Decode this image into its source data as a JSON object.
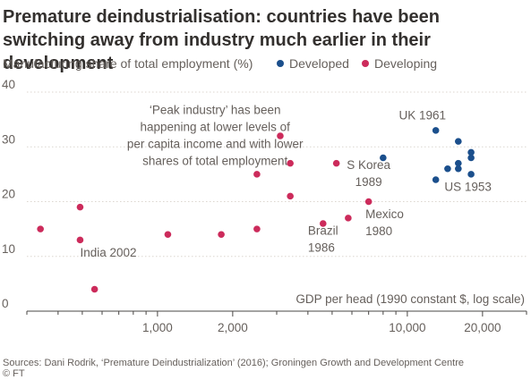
{
  "title": "Premature deindustrialisation: countries have been switching away from industry much earlier in their development",
  "source": "Sources: Dani Rodrik, ‘Premature Deindustrialization’ (2016); Groningen Growth and Development Centre",
  "credit": "© FT",
  "colors": {
    "developed": "#1b4f8c",
    "developing": "#cc2b5b",
    "grid": "#dcd6cf",
    "text": "#66605c"
  },
  "chart_data": {
    "type": "scatter",
    "ylabel": "Manufacturing share of total employment (%)",
    "xlabel": "GDP per head (1990 constant $, log scale)",
    "x_scale": "log",
    "xlim": [
      300,
      30000
    ],
    "ylim": [
      0,
      40
    ],
    "xticks": [
      1000,
      2000,
      10000,
      20000
    ],
    "xtick_labels": [
      "1,000",
      "2,000",
      "10,000",
      "20,000"
    ],
    "yticks": [
      0,
      10,
      20,
      30,
      40
    ],
    "ytick_labels": [
      "0",
      "10",
      "20",
      "30",
      "40"
    ],
    "grid": "horizontal dotted",
    "legend_position": "top-right",
    "series": [
      {
        "name": "Developed",
        "color": "#1b4f8c",
        "points": [
          {
            "x": 8000,
            "y": 28
          },
          {
            "x": 13000,
            "y": 33
          },
          {
            "x": 16000,
            "y": 31
          },
          {
            "x": 18000,
            "y": 29
          },
          {
            "x": 18000,
            "y": 28
          },
          {
            "x": 16000,
            "y": 27
          },
          {
            "x": 14500,
            "y": 26
          },
          {
            "x": 16000,
            "y": 26
          },
          {
            "x": 13000,
            "y": 24
          },
          {
            "x": 18000,
            "y": 25
          }
        ]
      },
      {
        "name": "Developing",
        "color": "#cc2b5b",
        "points": [
          {
            "x": 340,
            "y": 15
          },
          {
            "x": 490,
            "y": 19
          },
          {
            "x": 490,
            "y": 13
          },
          {
            "x": 560,
            "y": 4
          },
          {
            "x": 1100,
            "y": 14
          },
          {
            "x": 1800,
            "y": 14
          },
          {
            "x": 2500,
            "y": 25
          },
          {
            "x": 2500,
            "y": 15
          },
          {
            "x": 3100,
            "y": 32
          },
          {
            "x": 3400,
            "y": 27
          },
          {
            "x": 3400,
            "y": 21
          },
          {
            "x": 4600,
            "y": 16
          },
          {
            "x": 5200,
            "y": 27
          },
          {
            "x": 5800,
            "y": 17
          },
          {
            "x": 7000,
            "y": 20
          }
        ]
      }
    ],
    "annotations": [
      {
        "lines": [
          "‘Peak industry’ has been",
          "happening at lower levels of",
          "per capita income and with lower",
          "shares of total employment"
        ],
        "x": 1700,
        "y": 36,
        "align": "middle"
      },
      {
        "lines": [
          "UK 1961"
        ],
        "x": 11500,
        "y": 35,
        "align": "middle"
      },
      {
        "lines": [
          "S Korea",
          "1989"
        ],
        "x": 7000,
        "y": 26,
        "align": "middle"
      },
      {
        "lines": [
          "US 1953"
        ],
        "x": 17500,
        "y": 22,
        "align": "middle"
      },
      {
        "lines": [
          "Mexico",
          "1980"
        ],
        "x": 6800,
        "y": 17,
        "align": "start"
      },
      {
        "lines": [
          "Brazil",
          "1986"
        ],
        "x": 4000,
        "y": 14,
        "align": "start"
      },
      {
        "lines": [
          "India 2002"
        ],
        "x": 490,
        "y": 10,
        "align": "start"
      }
    ]
  }
}
